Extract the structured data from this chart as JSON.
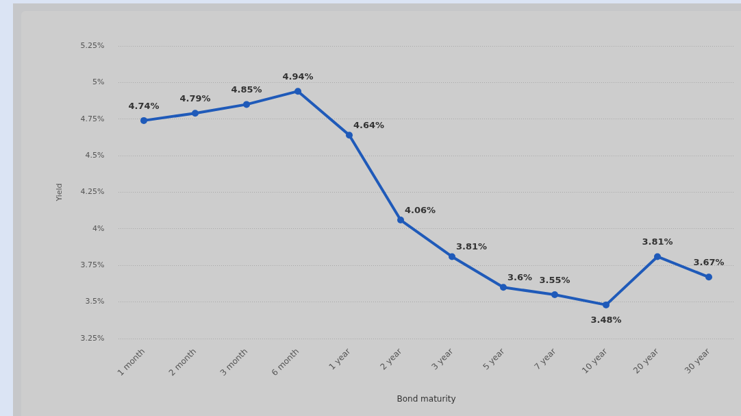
{
  "chart_data": {
    "type": "line",
    "xlabel": "Bond maturity",
    "ylabel": "Yield",
    "categories": [
      "1 month",
      "2 month",
      "3 month",
      "6 month",
      "1 year",
      "2 year",
      "3 year",
      "5 year",
      "7 year",
      "10 year",
      "20 year",
      "30 year"
    ],
    "values": [
      4.74,
      4.79,
      4.85,
      4.94,
      4.64,
      4.06,
      3.81,
      3.6,
      3.55,
      3.48,
      3.81,
      3.67
    ],
    "value_labels": [
      "4.74%",
      "4.79%",
      "4.85%",
      "4.94%",
      "4.64%",
      "4.06%",
      "3.81%",
      "3.6%",
      "3.55%",
      "3.48%",
      "3.81%",
      "3.67%"
    ],
    "color": "#1f5ab9",
    "ylim": [
      3.25,
      5.25
    ],
    "yticks": [
      {
        "value": 3.25,
        "label": "3.25%"
      },
      {
        "value": 3.5,
        "label": "3.5%"
      },
      {
        "value": 3.75,
        "label": "3.75%"
      },
      {
        "value": 4,
        "label": "4%"
      },
      {
        "value": 4.25,
        "label": "4.25%"
      },
      {
        "value": 4.5,
        "label": "4.5%"
      },
      {
        "value": 4.75,
        "label": "4.75%"
      },
      {
        "value": 5,
        "label": "5%"
      },
      {
        "value": 5.25,
        "label": "5.25%"
      }
    ],
    "grid": "y",
    "marker": "circle",
    "line_style": "solid"
  }
}
